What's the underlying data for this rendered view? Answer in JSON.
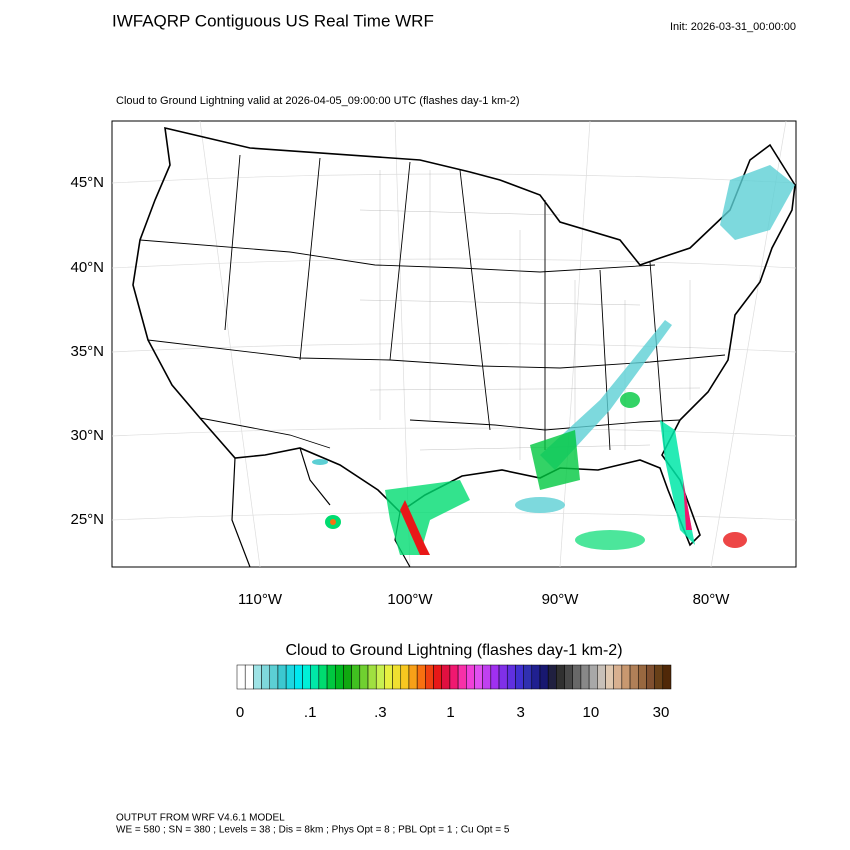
{
  "header": {
    "title": "IWFAQRP Contiguous US Real Time WRF",
    "init": "Init: 2026-03-31_00:00:00"
  },
  "map": {
    "subtitle": "Cloud to Ground Lightning valid at 2026-04-05_09:00:00 UTC   (flashes day-1 km-2)",
    "lat_labels": [
      "45°N",
      "40°N",
      "35°N",
      "30°N",
      "25°N"
    ],
    "lon_labels": [
      "110°W",
      "100°W",
      "90°W",
      "80°W"
    ]
  },
  "colorbar": {
    "title": "Cloud to Ground Lightning  (flashes day-1 km-2)",
    "colors": [
      "#ffffff",
      "#ffffff",
      "#9ee3e6",
      "#7fd8dc",
      "#5ccfd4",
      "#3cc8d0",
      "#1fd6e0",
      "#00e8f0",
      "#00f0d8",
      "#00e8a8",
      "#00dc70",
      "#00c840",
      "#00b820",
      "#10a810",
      "#40c020",
      "#70d030",
      "#a0e040",
      "#c8f050",
      "#e8f040",
      "#f0e030",
      "#f8c820",
      "#f8a018",
      "#f87010",
      "#f04010",
      "#e81818",
      "#e01040",
      "#f01870",
      "#f830a8",
      "#f040d8",
      "#e050f0",
      "#c040f0",
      "#a030f0",
      "#8030e8",
      "#6030e0",
      "#4030d0",
      "#3030b0",
      "#202090",
      "#181870",
      "#202040",
      "#303030",
      "#484848",
      "#686868",
      "#888888",
      "#a8a8a8",
      "#c8c0b8",
      "#e0c8b0",
      "#d8b090",
      "#c89870",
      "#b08058",
      "#986840",
      "#805030",
      "#684018",
      "#502808"
    ],
    "labels": [
      "0",
      ".1",
      ".3",
      "1",
      "3",
      "10",
      "30"
    ]
  },
  "footer": {
    "line1": "OUTPUT FROM WRF V4.6.1 MODEL",
    "line2": "WE = 580 ; SN = 380 ; Levels = 38 ; Dis = 8km ; Phys Opt = 8 ; PBL Opt = 1 ; Cu Opt = 5"
  }
}
